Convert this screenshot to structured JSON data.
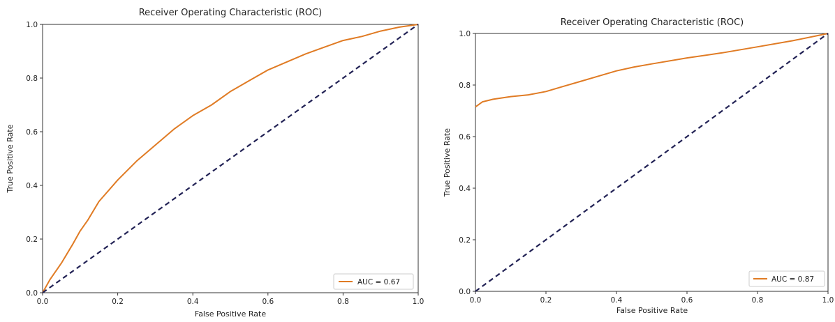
{
  "chart_data": [
    {
      "type": "line",
      "title": "Receiver Operating Characteristic (ROC)",
      "xlabel": "False Positive Rate",
      "ylabel": "True Positive Rate",
      "xlim": [
        0,
        1
      ],
      "ylim": [
        0,
        1
      ],
      "xticks": [
        "0.0",
        "0.2",
        "0.4",
        "0.6",
        "0.8",
        "1.0"
      ],
      "yticks": [
        "0.0",
        "0.2",
        "0.4",
        "0.6",
        "0.8",
        "1.0"
      ],
      "grid": false,
      "legend_position": "bottom-right",
      "series": [
        {
          "name": "AUC = 0.67",
          "color": "#e07b24",
          "style": "solid",
          "x": [
            0,
            0.02,
            0.05,
            0.08,
            0.1,
            0.12,
            0.15,
            0.2,
            0.25,
            0.3,
            0.35,
            0.4,
            0.45,
            0.5,
            0.55,
            0.6,
            0.65,
            0.7,
            0.75,
            0.8,
            0.85,
            0.9,
            0.95,
            1.0
          ],
          "y": [
            0,
            0.05,
            0.11,
            0.18,
            0.23,
            0.27,
            0.34,
            0.42,
            0.49,
            0.55,
            0.61,
            0.66,
            0.7,
            0.75,
            0.79,
            0.83,
            0.86,
            0.89,
            0.915,
            0.94,
            0.955,
            0.975,
            0.99,
            1.0
          ]
        },
        {
          "name": "",
          "color": "#222255",
          "style": "dashed",
          "x": [
            0,
            1
          ],
          "y": [
            0,
            1
          ]
        }
      ]
    },
    {
      "type": "line",
      "title": "Receiver Operating Characteristic (ROC)",
      "xlabel": "False Positive Rate",
      "ylabel": "True Positive Rate",
      "xlim": [
        0,
        1
      ],
      "ylim": [
        0,
        1
      ],
      "xticks": [
        "0.0",
        "0.2",
        "0.4",
        "0.6",
        "0.8",
        "1.0"
      ],
      "yticks": [
        "0.0",
        "0.2",
        "0.4",
        "0.6",
        "0.8",
        "1.0"
      ],
      "grid": false,
      "legend_position": "bottom-right",
      "series": [
        {
          "name": "AUC = 0.87",
          "color": "#e07b24",
          "style": "solid",
          "x": [
            0,
            0.02,
            0.05,
            0.1,
            0.15,
            0.2,
            0.25,
            0.3,
            0.35,
            0.4,
            0.45,
            0.5,
            0.6,
            0.7,
            0.8,
            0.9,
            1.0
          ],
          "y": [
            0.715,
            0.735,
            0.745,
            0.755,
            0.762,
            0.775,
            0.795,
            0.815,
            0.835,
            0.855,
            0.87,
            0.882,
            0.905,
            0.925,
            0.948,
            0.972,
            1.0
          ]
        },
        {
          "name": "",
          "color": "#222255",
          "style": "dashed",
          "x": [
            0,
            1
          ],
          "y": [
            0,
            1
          ]
        }
      ]
    }
  ]
}
